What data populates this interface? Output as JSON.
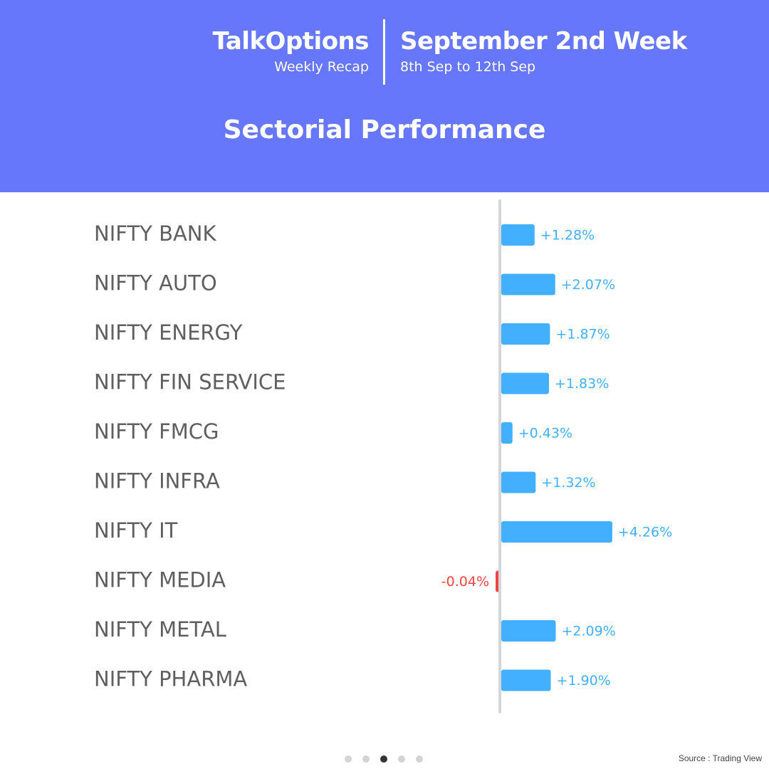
{
  "header": {
    "brand": "TalkOptions",
    "brand_sub": "Weekly Recap",
    "week_title": "September 2nd Week",
    "date_range": "8th Sep to 12th Sep",
    "section_title": "Sectorial Performance",
    "background_color": "#6677fb"
  },
  "chart_data": {
    "type": "bar",
    "orientation": "horizontal",
    "categories": [
      "NIFTY BANK",
      "NIFTY AUTO",
      "NIFTY ENERGY",
      "NIFTY FIN SERVICE",
      "NIFTY FMCG",
      "NIFTY INFRA",
      "NIFTY IT",
      "NIFTY MEDIA",
      "NIFTY METAL",
      "NIFTY PHARMA"
    ],
    "values": [
      1.28,
      2.07,
      1.87,
      1.83,
      0.43,
      1.32,
      4.26,
      -0.04,
      2.09,
      1.9
    ],
    "data_labels": [
      "+1.28%",
      "+2.07%",
      "+1.87%",
      "+1.83%",
      "+0.43%",
      "+1.32%",
      "+4.26%",
      "-0.04%",
      "+2.09%",
      "+1.90%"
    ],
    "positive_color": "#42b0ff",
    "negative_color": "#f04545",
    "grid": false
  },
  "pagination": {
    "total": 5,
    "active": 3
  },
  "source": "Source : Trading View"
}
